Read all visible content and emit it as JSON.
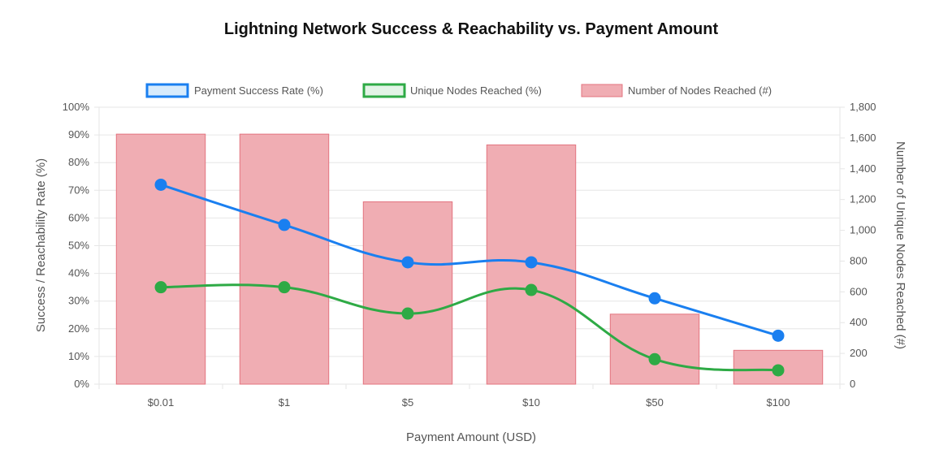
{
  "chart_data": {
    "type": "bar",
    "title": "Lightning Network Success & Reachability vs. Payment Amount",
    "xlabel": "Payment Amount (USD)",
    "ylabel": "Success / Reachability Rate (%)",
    "y2label": "Number of Unique Nodes Reached (#)",
    "categories": [
      "$0.01",
      "$1",
      "$5",
      "$10",
      "$50",
      "$100"
    ],
    "ylim": [
      0,
      100
    ],
    "y2lim": [
      0,
      1800
    ],
    "y_ticks": [
      "0%",
      "10%",
      "20%",
      "30%",
      "40%",
      "50%",
      "60%",
      "70%",
      "80%",
      "90%",
      "100%"
    ],
    "y2_ticks": [
      "0",
      "200",
      "400",
      "600",
      "800",
      "1,000",
      "1,200",
      "1,400",
      "1,600",
      "1,800"
    ],
    "legend_position": "top",
    "grid": true,
    "series": [
      {
        "name": "Payment Success Rate (%)",
        "type": "line",
        "axis": "left",
        "color": "#1a7ff0",
        "values": [
          72,
          57.5,
          44,
          44,
          31,
          17.5
        ]
      },
      {
        "name": "Unique Nodes Reached (%)",
        "type": "line",
        "axis": "left",
        "color": "#2eaa45",
        "values": [
          35,
          35,
          25.5,
          34,
          9,
          5
        ]
      },
      {
        "name": "Number of Nodes Reached (#)",
        "type": "bar",
        "axis": "right",
        "color": "#f0adb3",
        "border": "#e3747f",
        "values": [
          1625,
          1625,
          1185,
          1555,
          455,
          220
        ]
      }
    ]
  }
}
